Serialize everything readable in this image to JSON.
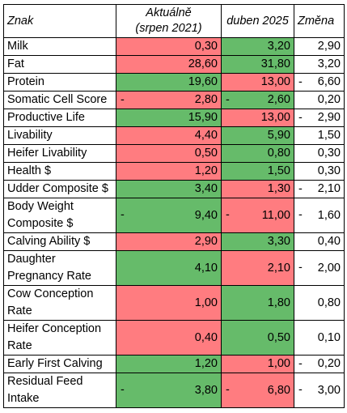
{
  "header": {
    "trait": "Znak",
    "current_line1": "Aktuálně",
    "current_line2": "(srpen 2021)",
    "new": "duben 2025",
    "change": "Změna"
  },
  "colors": {
    "red": "#ff7c80",
    "green": "#66bb6a"
  },
  "rows": [
    {
      "trait": "Milk",
      "current": "0,30",
      "current_sign": "",
      "current_color": "red",
      "new": "3,20",
      "new_sign": "",
      "new_color": "green",
      "change": "2,90",
      "change_sign": ""
    },
    {
      "trait": "Fat",
      "current": "28,60",
      "current_sign": "",
      "current_color": "red",
      "new": "31,80",
      "new_sign": "",
      "new_color": "green",
      "change": "3,20",
      "change_sign": ""
    },
    {
      "trait": "Protein",
      "current": "19,60",
      "current_sign": "",
      "current_color": "green",
      "new": "13,00",
      "new_sign": "",
      "new_color": "red",
      "change": "6,60",
      "change_sign": "-"
    },
    {
      "trait": "Somatic Cell Score",
      "current": "2,80",
      "current_sign": "-",
      "current_color": "red",
      "new": "2,60",
      "new_sign": "-",
      "new_color": "green",
      "change": "0,20",
      "change_sign": ""
    },
    {
      "trait": "Productive Life",
      "current": "15,90",
      "current_sign": "",
      "current_color": "green",
      "new": "13,00",
      "new_sign": "",
      "new_color": "red",
      "change": "2,90",
      "change_sign": "-"
    },
    {
      "trait": "Livability",
      "current": "4,40",
      "current_sign": "",
      "current_color": "red",
      "new": "5,90",
      "new_sign": "",
      "new_color": "green",
      "change": "1,50",
      "change_sign": ""
    },
    {
      "trait": "Heifer Livability",
      "current": "0,50",
      "current_sign": "",
      "current_color": "red",
      "new": "0,80",
      "new_sign": "",
      "new_color": "green",
      "change": "0,30",
      "change_sign": ""
    },
    {
      "trait": "Health $",
      "current": "1,20",
      "current_sign": "",
      "current_color": "red",
      "new": "1,50",
      "new_sign": "",
      "new_color": "green",
      "change": "0,30",
      "change_sign": ""
    },
    {
      "trait": "Udder Composite $",
      "current": "3,40",
      "current_sign": "",
      "current_color": "green",
      "new": "1,30",
      "new_sign": "",
      "new_color": "red",
      "change": "2,10",
      "change_sign": "-"
    },
    {
      "trait": "Body Weight Composite $",
      "current": "9,40",
      "current_sign": "-",
      "current_color": "green",
      "new": "11,00",
      "new_sign": "-",
      "new_color": "red",
      "change": "1,60",
      "change_sign": "-"
    },
    {
      "trait": "Calving Ability $",
      "current": "2,90",
      "current_sign": "",
      "current_color": "red",
      "new": "3,30",
      "new_sign": "",
      "new_color": "green",
      "change": "0,40",
      "change_sign": ""
    },
    {
      "trait": "Daughter Pregnancy Rate",
      "current": "4,10",
      "current_sign": "",
      "current_color": "green",
      "new": "2,10",
      "new_sign": "",
      "new_color": "red",
      "change": "2,00",
      "change_sign": "-"
    },
    {
      "trait": "Cow Conception Rate",
      "current": "1,00",
      "current_sign": "",
      "current_color": "red",
      "new": "1,80",
      "new_sign": "",
      "new_color": "green",
      "change": "0,80",
      "change_sign": ""
    },
    {
      "trait": "Heifer Conception Rate",
      "current": "0,40",
      "current_sign": "",
      "current_color": "red",
      "new": "0,50",
      "new_sign": "",
      "new_color": "green",
      "change": "0,10",
      "change_sign": ""
    },
    {
      "trait": "Early First Calving",
      "current": "1,20",
      "current_sign": "",
      "current_color": "green",
      "new": "1,00",
      "new_sign": "",
      "new_color": "red",
      "change": "0,20",
      "change_sign": "-"
    },
    {
      "trait": "Residual Feed Intake",
      "current": "3,80",
      "current_sign": "-",
      "current_color": "green",
      "new": "6,80",
      "new_sign": "-",
      "new_color": "red",
      "change": "3,00",
      "change_sign": "-"
    }
  ]
}
